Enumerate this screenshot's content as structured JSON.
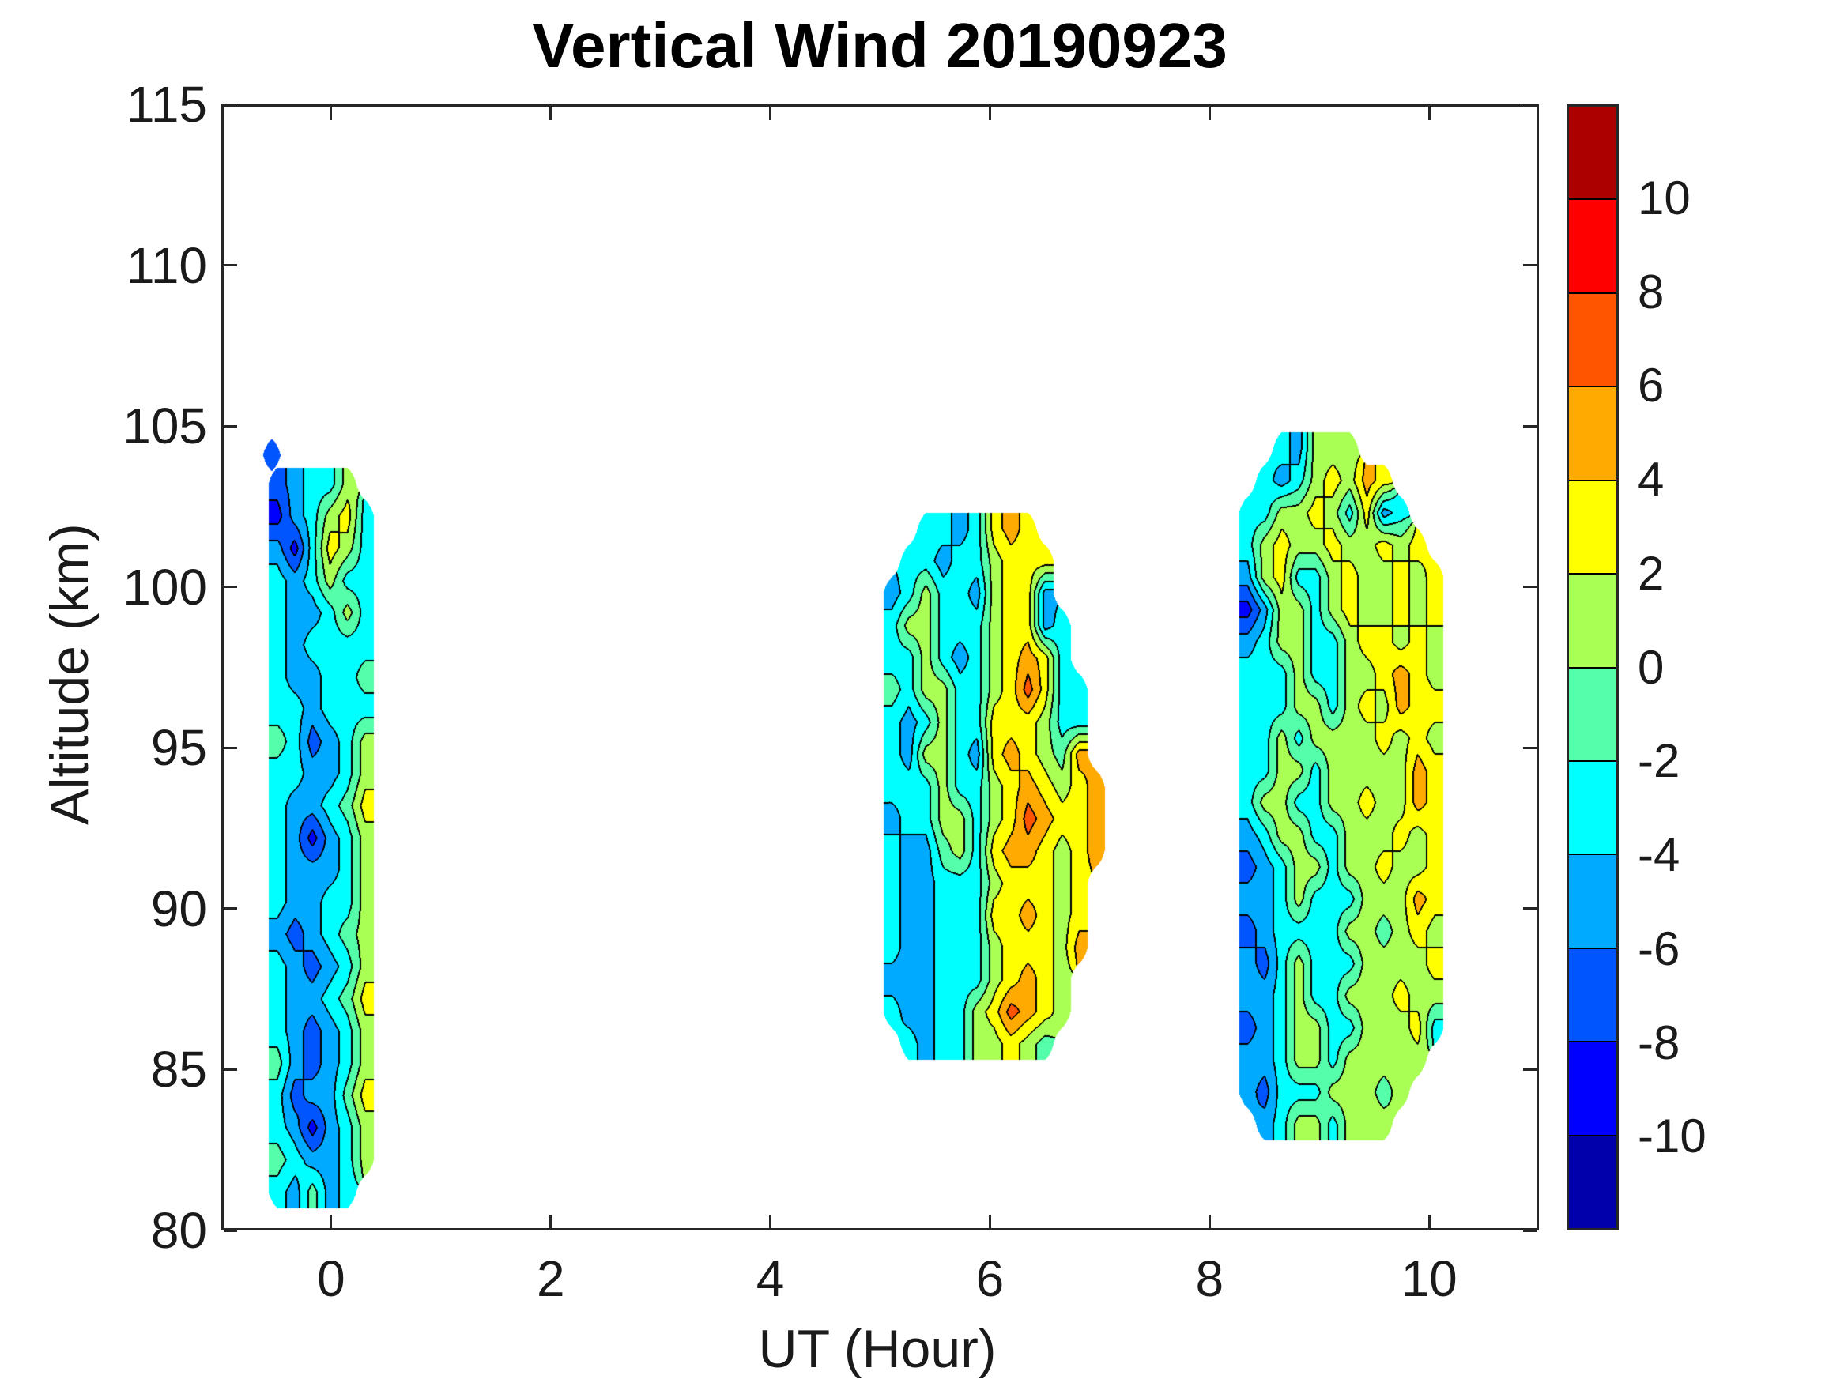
{
  "figure": {
    "title": "Vertical Wind 20190923",
    "background": "#FFFFFF",
    "axis_color": "#262626",
    "x_axis": {
      "label": "UT (Hour)",
      "ticks": [
        0,
        2,
        4,
        6,
        8,
        10
      ],
      "range": [
        -1,
        11
      ]
    },
    "y_axis": {
      "label": "Altitude (km)",
      "ticks": [
        80,
        85,
        90,
        95,
        100,
        105,
        110,
        115
      ],
      "range": [
        80,
        115
      ]
    },
    "colorbar": {
      "ticks": [
        10,
        8,
        6,
        4,
        2,
        0,
        -2,
        -4,
        -6,
        -8,
        -10
      ],
      "range": [
        -12,
        12
      ],
      "colors": [
        "#0000AA",
        "#0000FF",
        "#0055FF",
        "#00AAFF",
        "#00FFFF",
        "#55FFAA",
        "#AAFF55",
        "#FFFF00",
        "#FFAA00",
        "#FF5500",
        "#FF0000",
        "#AA0000"
      ],
      "contour_line_color": "#000000"
    }
  },
  "chart_data": {
    "type": "contour",
    "title": "Vertical Wind 20190923",
    "xlabel": "UT (Hour)",
    "ylabel": "Altitude (km)",
    "xlim": [
      -1,
      11
    ],
    "ylim": [
      80,
      115
    ],
    "levels_min": -12,
    "levels_step": 2,
    "grid": false,
    "patches": [
      {
        "x0": -0.57,
        "dx": 0.16,
        "alt_top": 103.2,
        "dalt": 1.0,
        "values": [
          [
            -7,
            -5,
            -3,
            -3,
            1,
            null
          ],
          [
            -9,
            -5,
            -3,
            1,
            3,
            -3
          ],
          [
            -5,
            -9,
            -3,
            3,
            1,
            -3
          ],
          [
            -3,
            -5,
            -3,
            1,
            -3,
            -3
          ],
          [
            -3,
            -5,
            -5,
            -3,
            1,
            -3
          ],
          [
            -3,
            -5,
            -3,
            -3,
            -3,
            -3
          ],
          [
            -3,
            -5,
            -5,
            -3,
            -3,
            -1
          ],
          [
            -3,
            -3,
            -5,
            -3,
            -3,
            -3
          ],
          [
            -1,
            -3,
            -7,
            -5,
            -3,
            1
          ],
          [
            -3,
            -3,
            -5,
            -5,
            -3,
            1
          ],
          [
            -3,
            -5,
            -5,
            -3,
            -1,
            3
          ],
          [
            -3,
            -5,
            -9,
            -5,
            -3,
            1
          ],
          [
            -3,
            -5,
            -5,
            -5,
            -3,
            1
          ],
          [
            -3,
            -5,
            -5,
            -3,
            -3,
            1
          ],
          [
            -5,
            -7,
            -5,
            -3,
            -1,
            1
          ],
          [
            -3,
            -5,
            -7,
            -5,
            -3,
            1
          ],
          [
            -3,
            -5,
            -5,
            -3,
            -1,
            3
          ],
          [
            -3,
            -5,
            -7,
            -5,
            -3,
            1
          ],
          [
            -1,
            -5,
            -7,
            -5,
            -3,
            1
          ],
          [
            -3,
            -7,
            -5,
            -5,
            -1,
            3
          ],
          [
            -3,
            -5,
            -9,
            -5,
            -3,
            1
          ],
          [
            -1,
            -3,
            -5,
            -5,
            -3,
            1
          ],
          [
            -3,
            -5,
            -1,
            -5,
            -3,
            null
          ]
        ]
      },
      {
        "x0": -0.62,
        "dx": 0.16,
        "alt_top": 104.1,
        "dalt": 1.0,
        "values": [
          [
            -7
          ]
        ]
      },
      {
        "x0": 5.03,
        "dx": 0.155,
        "alt_top": 101.8,
        "dalt": 1.0,
        "values": [
          [
            null,
            null,
            -3,
            -3,
            -5,
            -3,
            3,
            5,
            3,
            null,
            null,
            null,
            null
          ],
          [
            null,
            -3,
            -3,
            -5,
            -3,
            -3,
            1,
            3,
            3,
            3,
            null,
            null,
            null
          ],
          [
            -5,
            -3,
            1,
            -3,
            -3,
            -5,
            1,
            3,
            3,
            -5,
            null,
            null,
            null
          ],
          [
            -3,
            1,
            1,
            -3,
            -3,
            -3,
            1,
            3,
            3,
            -5,
            -3,
            null,
            null
          ],
          [
            -3,
            -3,
            1,
            -3,
            -5,
            -3,
            1,
            3,
            5,
            3,
            -3,
            null,
            null
          ],
          [
            -1,
            -3,
            1,
            1,
            -3,
            -3,
            1,
            3,
            7,
            3,
            -3,
            -3,
            null
          ],
          [
            -3,
            -5,
            -3,
            1,
            -3,
            -3,
            3,
            3,
            3,
            1,
            -3,
            -3,
            null
          ],
          [
            -3,
            -5,
            1,
            1,
            -3,
            -5,
            3,
            5,
            3,
            1,
            -1,
            5,
            null
          ],
          [
            -3,
            -3,
            -3,
            1,
            -3,
            -3,
            1,
            3,
            5,
            3,
            1,
            3,
            5
          ],
          [
            -5,
            -3,
            -3,
            1,
            1,
            -3,
            1,
            3,
            7,
            5,
            3,
            3,
            5
          ],
          [
            -3,
            -5,
            -5,
            -1,
            1,
            -3,
            3,
            5,
            5,
            3,
            1,
            3,
            5
          ],
          [
            -3,
            -5,
            -5,
            -3,
            -3,
            -3,
            1,
            3,
            3,
            3,
            1,
            3,
            null
          ],
          [
            -3,
            -5,
            -5,
            -3,
            -3,
            -3,
            3,
            3,
            5,
            3,
            1,
            3,
            null
          ],
          [
            -3,
            -5,
            -5,
            -3,
            -3,
            -3,
            1,
            3,
            3,
            3,
            1,
            5,
            null
          ],
          [
            -5,
            -5,
            -5,
            -3,
            -3,
            -3,
            1,
            3,
            5,
            3,
            1,
            null,
            null
          ],
          [
            -3,
            -5,
            -5,
            -3,
            -3,
            1,
            3,
            7,
            5,
            3,
            1,
            null,
            null
          ],
          [
            null,
            -3,
            -5,
            -3,
            -3,
            1,
            1,
            3,
            1,
            -1,
            null,
            null,
            null
          ]
        ]
      },
      {
        "x0": 8.27,
        "dx": 0.155,
        "alt_top": 104.3,
        "dalt": 1.0,
        "values": [
          [
            null,
            null,
            -3,
            -5,
            1,
            1,
            1,
            null,
            null,
            null,
            null,
            null
          ],
          [
            null,
            -3,
            -5,
            -3,
            1,
            3,
            1,
            5,
            3,
            null,
            null,
            null
          ],
          [
            -3,
            -3,
            1,
            1,
            3,
            1,
            -3,
            3,
            -5,
            -3,
            null,
            null
          ],
          [
            -3,
            1,
            3,
            1,
            1,
            3,
            1,
            1,
            3,
            1,
            3,
            null
          ],
          [
            -5,
            1,
            3,
            -3,
            -3,
            1,
            3,
            1,
            1,
            3,
            1,
            3
          ],
          [
            -9,
            -5,
            1,
            1,
            -3,
            1,
            3,
            1,
            1,
            3,
            1,
            3
          ],
          [
            -5,
            -3,
            1,
            1,
            -3,
            -3,
            1,
            3,
            3,
            1,
            3,
            1
          ],
          [
            -3,
            -3,
            -3,
            1,
            -3,
            -3,
            1,
            1,
            3,
            5,
            3,
            1
          ],
          [
            -3,
            -3,
            -3,
            1,
            1,
            -3,
            1,
            3,
            1,
            5,
            3,
            3
          ],
          [
            -3,
            -3,
            1,
            -3,
            1,
            1,
            1,
            1,
            3,
            1,
            3,
            1
          ],
          [
            -3,
            -3,
            1,
            1,
            -3,
            1,
            1,
            1,
            1,
            1,
            5,
            3
          ],
          [
            -3,
            1,
            1,
            -3,
            -3,
            1,
            1,
            3,
            1,
            1,
            5,
            3
          ],
          [
            -5,
            -3,
            1,
            1,
            -3,
            -3,
            1,
            1,
            1,
            3,
            1,
            3
          ],
          [
            -7,
            -5,
            -3,
            1,
            1,
            -3,
            1,
            1,
            3,
            1,
            1,
            3
          ],
          [
            -5,
            -5,
            -3,
            1,
            -3,
            -3,
            -3,
            1,
            1,
            1,
            5,
            3
          ],
          [
            -7,
            -5,
            -3,
            -3,
            -3,
            -3,
            1,
            1,
            -1,
            1,
            3,
            1
          ],
          [
            -5,
            -7,
            -3,
            1,
            -3,
            -3,
            -3,
            1,
            1,
            1,
            1,
            3
          ],
          [
            -5,
            -5,
            -3,
            1,
            -3,
            -3,
            1,
            1,
            1,
            3,
            1,
            1
          ],
          [
            -7,
            -5,
            -3,
            1,
            1,
            -3,
            -3,
            1,
            1,
            1,
            3,
            -3
          ],
          [
            -5,
            -5,
            -3,
            1,
            1,
            -3,
            1,
            1,
            1,
            1,
            1,
            null
          ],
          [
            -5,
            -7,
            -3,
            -3,
            -3,
            1,
            1,
            1,
            -1,
            1,
            null,
            null
          ],
          [
            null,
            -5,
            -3,
            1,
            1,
            -3,
            1,
            1,
            1,
            null,
            null,
            null
          ]
        ]
      }
    ]
  }
}
